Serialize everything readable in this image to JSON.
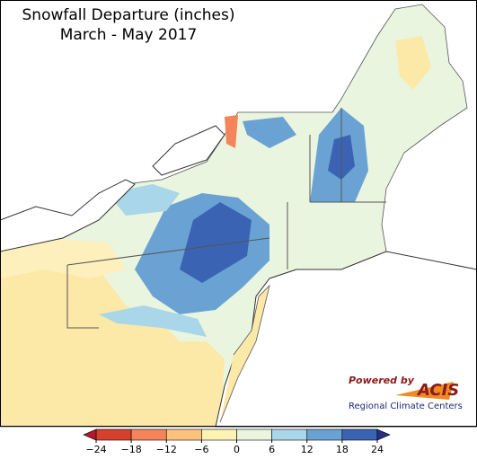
{
  "title": "Snowfall Departure (inches)",
  "subtitle": "March - May 2017",
  "legend": {
    "ticks": [
      {
        "value": -24,
        "label": "−24"
      },
      {
        "value": -18,
        "label": "−18"
      },
      {
        "value": -12,
        "label": "−12"
      },
      {
        "value": -6,
        "label": "−6"
      },
      0,
      6,
      12,
      18,
      24
    ],
    "under_color": "#b2182b",
    "colors": [
      "#d6402e",
      "#f4845a",
      "#fbc27d",
      "#fef2b5",
      "#e9f5df",
      "#a9d6e8",
      "#6aa3d3",
      "#3a64b3"
    ],
    "over_color": "#27307f"
  },
  "logo": {
    "powered_by": "Powered by",
    "name": "ACIS",
    "org": "Regional Climate Centers"
  }
}
